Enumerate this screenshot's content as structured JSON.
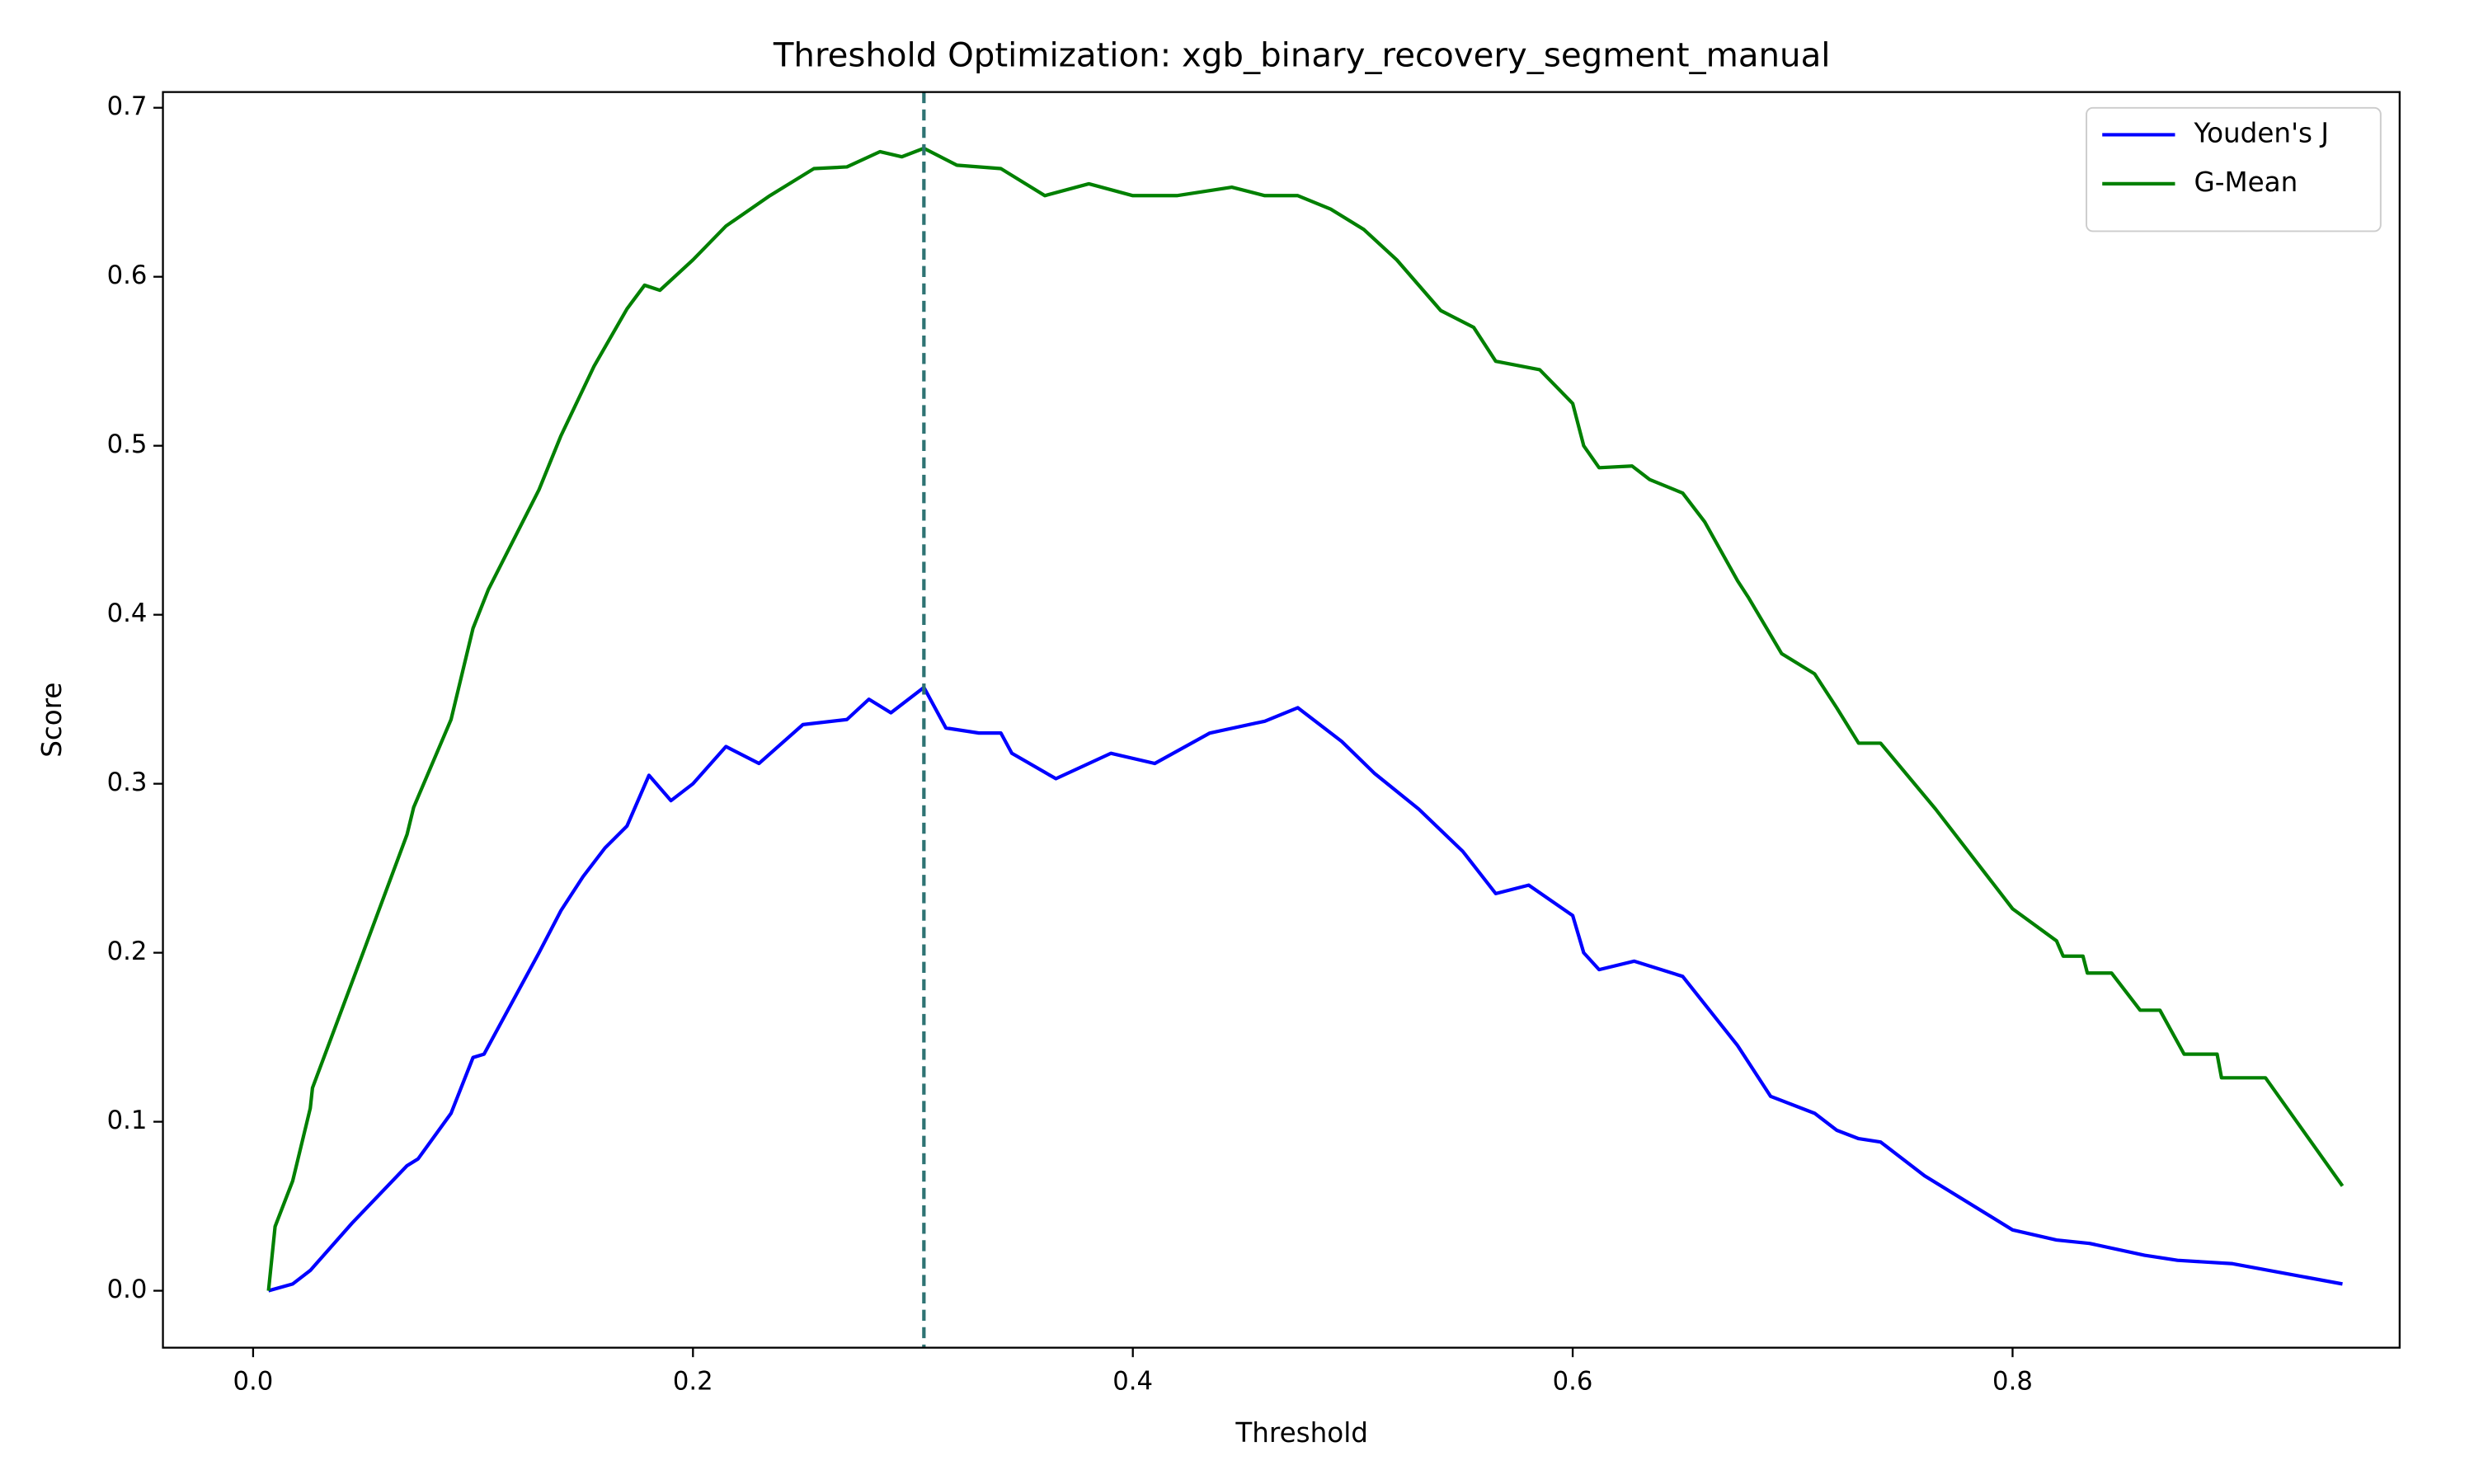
{
  "chart_data": {
    "type": "line",
    "title": "Threshold Optimization: xgb_binary_recovery_segment_manual",
    "x_label": "Threshold",
    "y_label": "Score",
    "xlim": [
      -0.041,
      0.976
    ],
    "ylim": [
      -0.0337,
      0.7093
    ],
    "xticks": [
      {
        "value": 0,
        "label": "0.0"
      },
      0.2,
      0.4,
      0.6,
      0.8
    ],
    "yticks": [
      {
        "value": 0,
        "label": "0.0"
      },
      0.1,
      0.2,
      0.3,
      0.4,
      0.5,
      0.6,
      0.7
    ],
    "legend": "upper right",
    "vline": {
      "x": 0.305,
      "color": "#2e7373"
    },
    "series": [
      {
        "name": "Youden's J",
        "color": "#0000ff",
        "x": [
          0.007,
          0.018,
          0.026,
          0.045,
          0.07,
          0.075,
          0.09,
          0.1,
          0.105,
          0.11,
          0.13,
          0.14,
          0.15,
          0.16,
          0.17,
          0.18,
          0.19,
          0.2,
          0.215,
          0.23,
          0.25,
          0.27,
          0.28,
          0.29,
          0.305,
          0.315,
          0.33,
          0.34,
          0.345,
          0.365,
          0.39,
          0.41,
          0.435,
          0.46,
          0.475,
          0.495,
          0.51,
          0.53,
          0.55,
          0.565,
          0.58,
          0.6,
          0.605,
          0.612,
          0.628,
          0.65,
          0.675,
          0.69,
          0.71,
          0.72,
          0.73,
          0.74,
          0.76,
          0.8,
          0.82,
          0.835,
          0.86,
          0.875,
          0.9,
          0.95
        ],
        "values": [
          0.0,
          0.004,
          0.012,
          0.04,
          0.074,
          0.078,
          0.105,
          0.138,
          0.14,
          0.152,
          0.2,
          0.225,
          0.245,
          0.262,
          0.275,
          0.305,
          0.29,
          0.3,
          0.322,
          0.312,
          0.335,
          0.338,
          0.35,
          0.342,
          0.357,
          0.333,
          0.33,
          0.33,
          0.318,
          0.303,
          0.318,
          0.312,
          0.33,
          0.337,
          0.345,
          0.325,
          0.306,
          0.285,
          0.26,
          0.235,
          0.24,
          0.222,
          0.2,
          0.19,
          0.195,
          0.186,
          0.145,
          0.115,
          0.105,
          0.095,
          0.09,
          0.088,
          0.068,
          0.036,
          0.03,
          0.028,
          0.021,
          0.018,
          0.016,
          0.004
        ]
      },
      {
        "name": "G-Mean",
        "color": "#008000",
        "x": [
          0.007,
          0.01,
          0.018,
          0.026,
          0.027,
          0.05,
          0.07,
          0.073,
          0.09,
          0.1,
          0.107,
          0.13,
          0.14,
          0.155,
          0.17,
          0.178,
          0.185,
          0.2,
          0.215,
          0.235,
          0.255,
          0.27,
          0.285,
          0.295,
          0.305,
          0.32,
          0.34,
          0.36,
          0.38,
          0.4,
          0.42,
          0.445,
          0.46,
          0.475,
          0.49,
          0.505,
          0.52,
          0.54,
          0.555,
          0.565,
          0.585,
          0.6,
          0.605,
          0.612,
          0.627,
          0.635,
          0.65,
          0.66,
          0.675,
          0.68,
          0.695,
          0.71,
          0.72,
          0.73,
          0.74,
          0.765,
          0.8,
          0.82,
          0.823,
          0.832,
          0.834,
          0.845,
          0.858,
          0.867,
          0.878,
          0.893,
          0.895,
          0.915,
          0.95
        ],
        "values": [
          0.0,
          0.038,
          0.065,
          0.108,
          0.12,
          0.2,
          0.27,
          0.286,
          0.338,
          0.392,
          0.415,
          0.474,
          0.506,
          0.547,
          0.581,
          0.595,
          0.592,
          0.61,
          0.63,
          0.648,
          0.664,
          0.665,
          0.674,
          0.671,
          0.676,
          0.666,
          0.664,
          0.648,
          0.655,
          0.648,
          0.648,
          0.653,
          0.648,
          0.648,
          0.64,
          0.628,
          0.61,
          0.58,
          0.57,
          0.55,
          0.545,
          0.525,
          0.5,
          0.487,
          0.488,
          0.48,
          0.472,
          0.455,
          0.42,
          0.41,
          0.377,
          0.365,
          0.345,
          0.324,
          0.324,
          0.285,
          0.226,
          0.207,
          0.198,
          0.198,
          0.188,
          0.188,
          0.166,
          0.166,
          0.14,
          0.14,
          0.126,
          0.126,
          0.062
        ]
      }
    ]
  }
}
